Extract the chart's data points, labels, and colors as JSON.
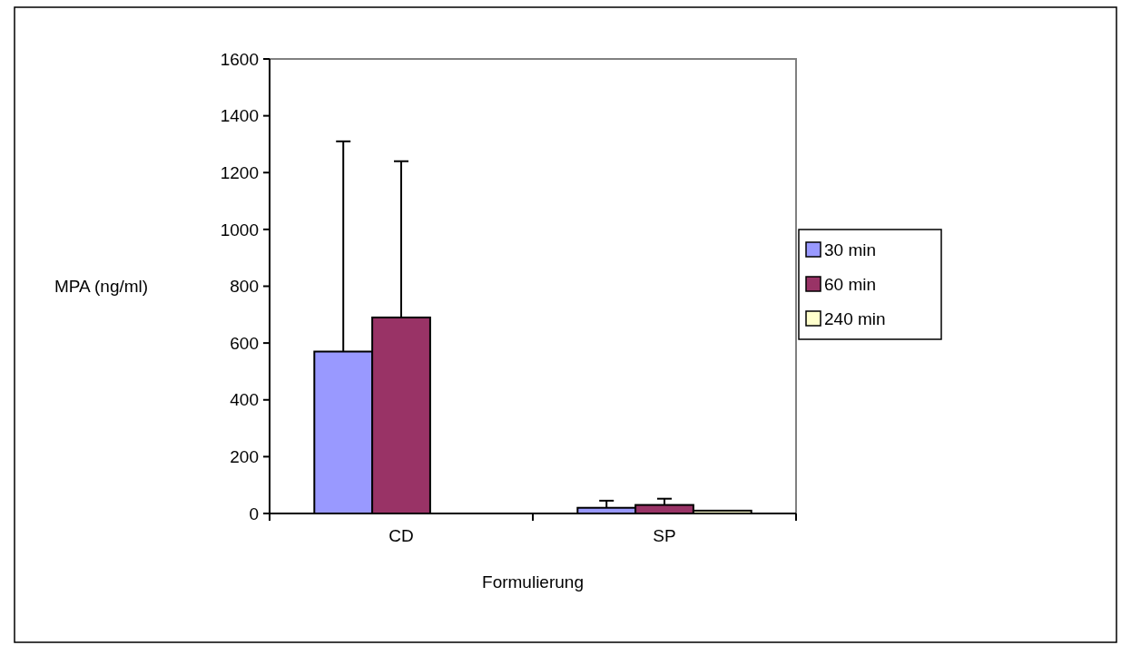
{
  "chart_data": {
    "type": "bar",
    "xlabel": "Formulierung",
    "ylabel": "MPA (ng/ml)",
    "categories": [
      "CD",
      "SP"
    ],
    "series": [
      {
        "name": "30 min",
        "color": "#9999ff",
        "values": [
          570,
          20
        ],
        "errors": [
          740,
          25
        ]
      },
      {
        "name": "60 min",
        "color": "#993366",
        "values": [
          690,
          30
        ],
        "errors": [
          550,
          22
        ]
      },
      {
        "name": "240 min",
        "color": "#ffffcc",
        "values": [
          null,
          10
        ],
        "errors": [
          null,
          null
        ]
      }
    ],
    "ylim": [
      0,
      1600
    ],
    "yticks": [
      0,
      200,
      400,
      600,
      800,
      1000,
      1200,
      1400,
      1600
    ],
    "grid": false,
    "legend": "right"
  }
}
